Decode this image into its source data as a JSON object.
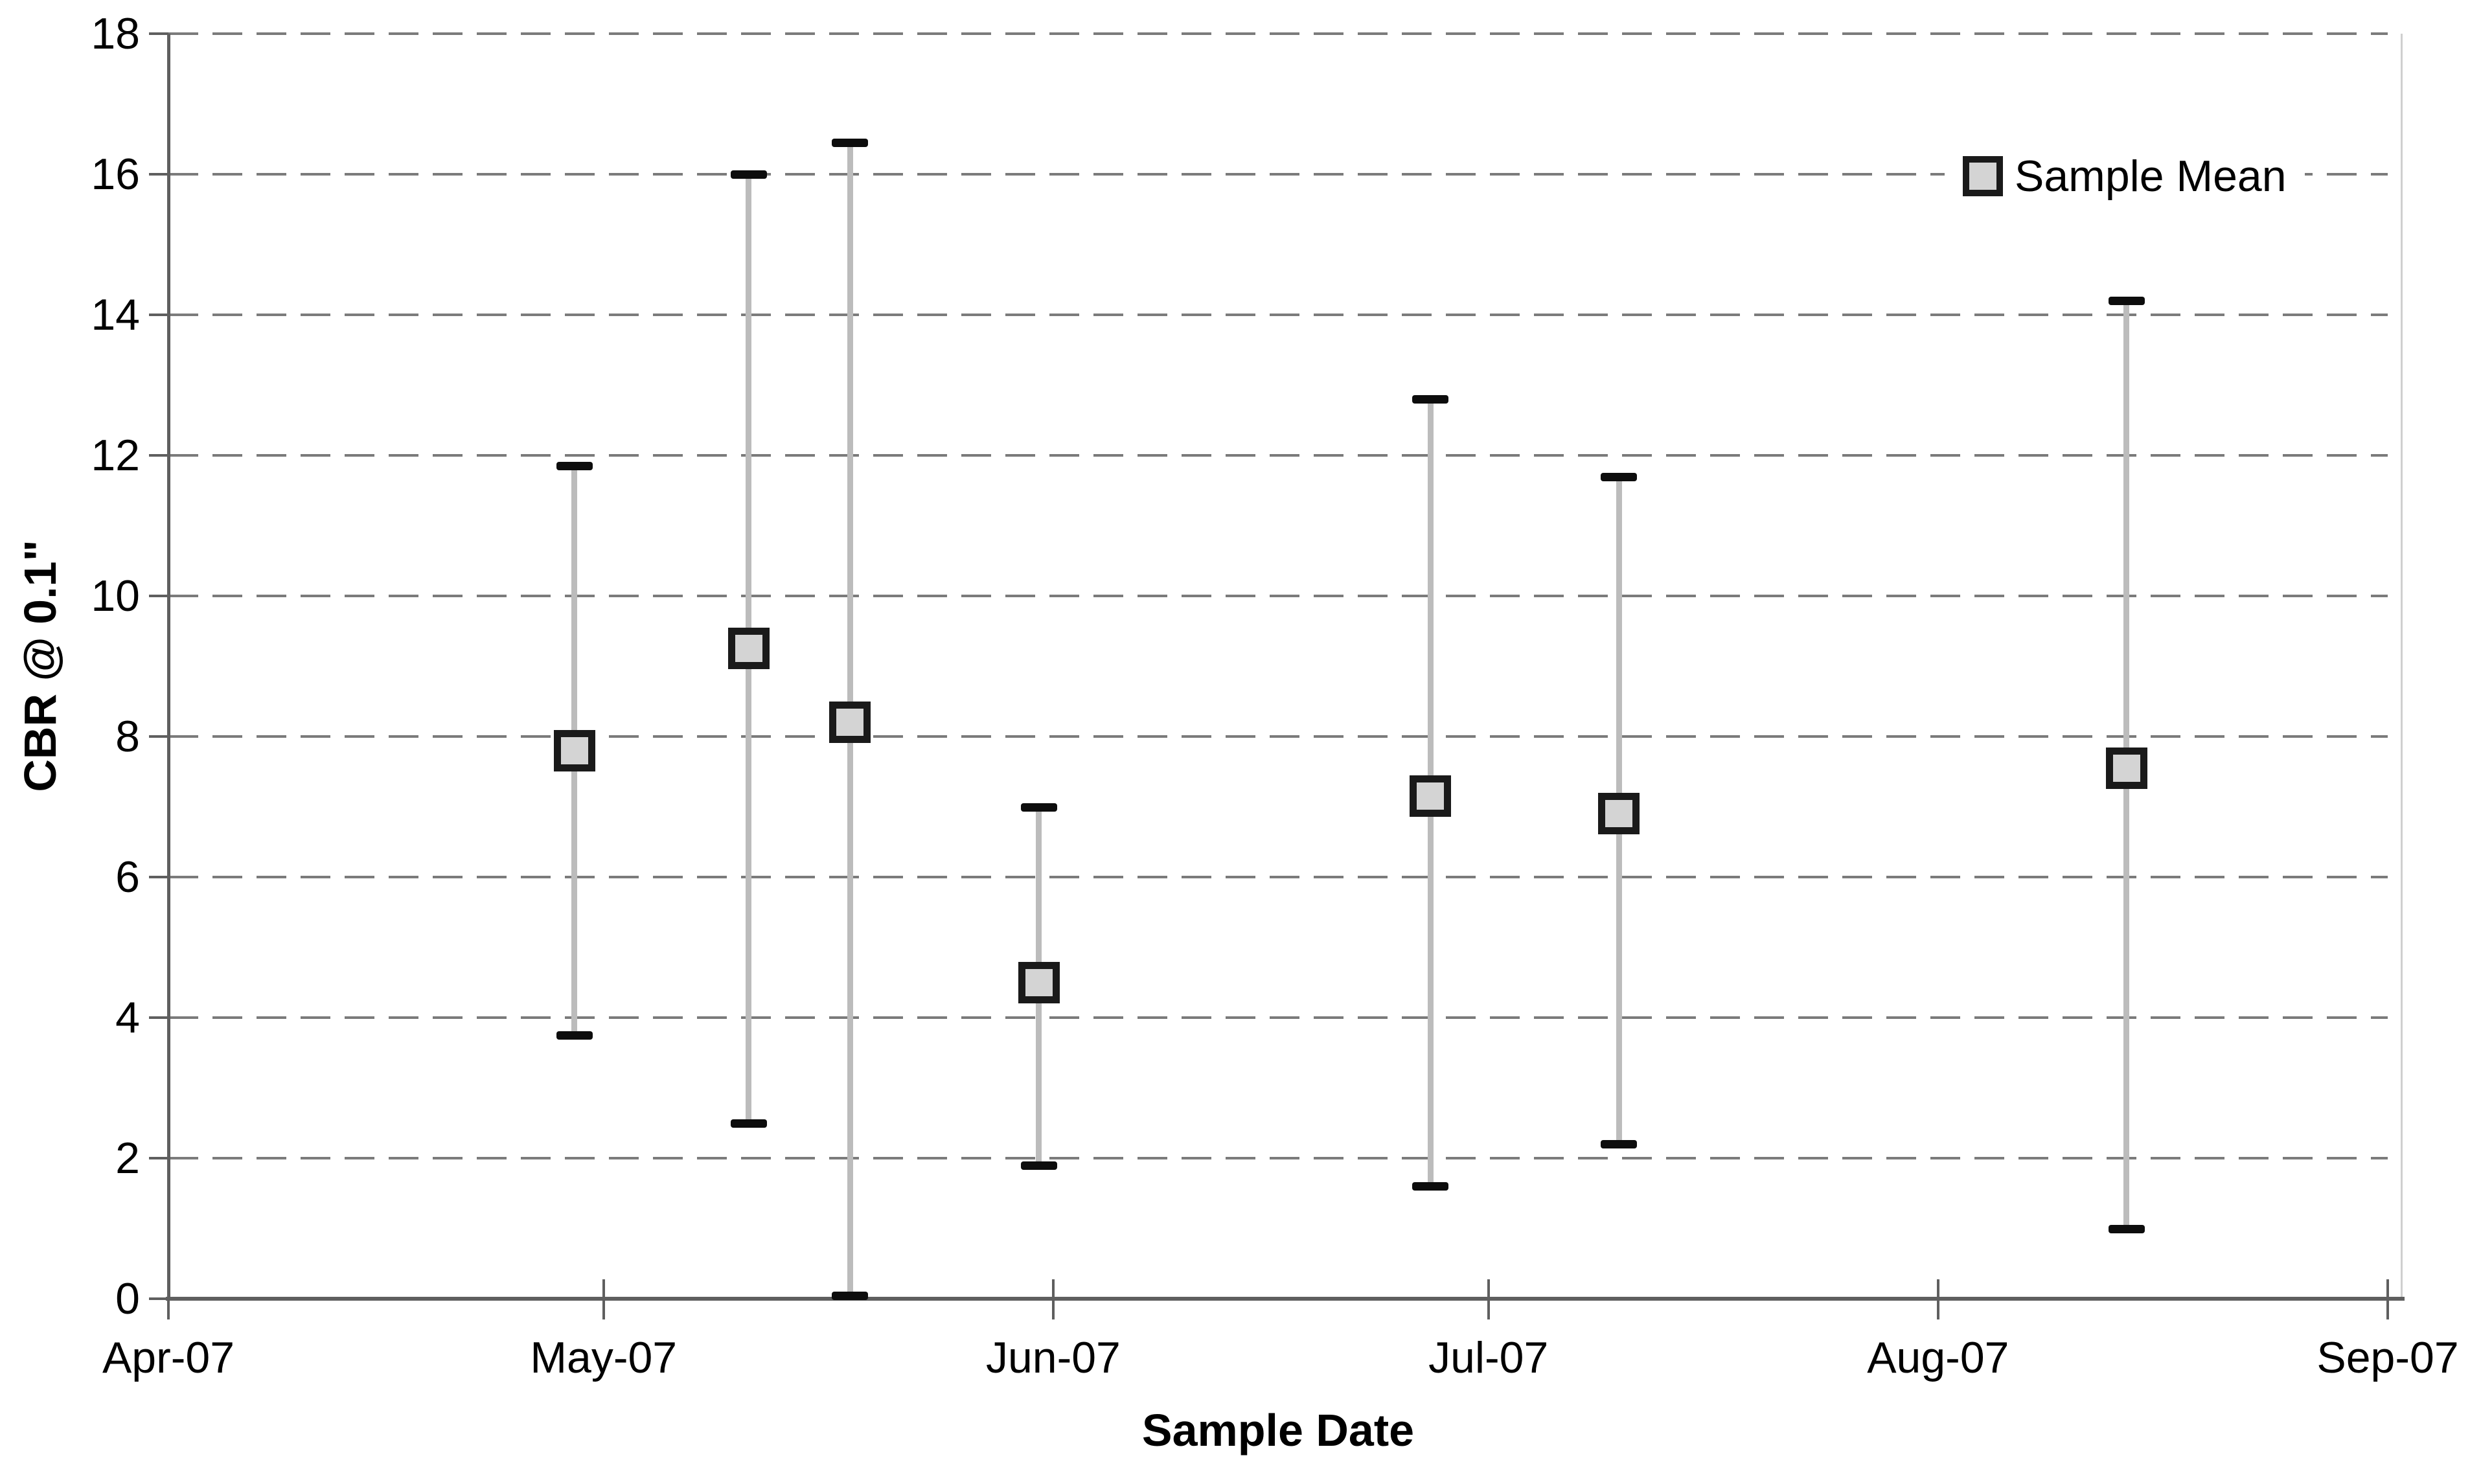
{
  "page": {
    "background": "#ffffff"
  },
  "legend": {
    "label": "Sample Mean"
  },
  "colors": {
    "gridline": "#7b7b7b",
    "axis": "#5f5f5f",
    "error_line": "#bcbcbc",
    "error_cap": "#0d0d0d",
    "marker_fill": "#d4d4d4",
    "marker_border": "#1a1a1a",
    "text": "#000000"
  },
  "chart_data": {
    "type": "scatter",
    "title": "",
    "xlabel": "Sample Date",
    "ylabel": "CBR @ 0.1\"",
    "grid": "horizontal-dashed",
    "legend_position": "top-right",
    "x_axis": {
      "start_date": "2007-04-01",
      "end_date": "2007-09-01",
      "tick_dates": [
        "2007-04-01",
        "2007-05-01",
        "2007-06-01",
        "2007-07-01",
        "2007-08-01",
        "2007-09-01"
      ],
      "tick_labels": [
        "Apr-07",
        "May-07",
        "Jun-07",
        "Jul-07",
        "Aug-07",
        "Sep-07"
      ]
    },
    "y_axis": {
      "min": 0,
      "max": 18,
      "step": 2,
      "tick_labels": [
        "0",
        "2",
        "4",
        "6",
        "8",
        "10",
        "12",
        "14",
        "16",
        "18"
      ]
    },
    "series": [
      {
        "name": "Sample Mean",
        "marker": {
          "shape": "square",
          "fill": "#d4d4d4",
          "border": "#1a1a1a"
        },
        "error_bars": "min-max range with caps",
        "points": [
          {
            "date": "2007-04-29",
            "mean": 7.8,
            "upper": 11.85,
            "lower": 3.75
          },
          {
            "date": "2007-05-11",
            "mean": 9.25,
            "upper": 16.0,
            "lower": 2.5
          },
          {
            "date": "2007-05-18",
            "mean": 8.2,
            "upper": 16.45,
            "lower": 0.05
          },
          {
            "date": "2007-05-31",
            "mean": 4.5,
            "upper": 7.0,
            "lower": 1.9
          },
          {
            "date": "2007-06-27",
            "mean": 7.15,
            "upper": 12.8,
            "lower": 1.6
          },
          {
            "date": "2007-07-10",
            "mean": 6.9,
            "upper": 11.7,
            "lower": 2.2
          },
          {
            "date": "2007-08-14",
            "mean": 7.55,
            "upper": 14.2,
            "lower": 1.0
          }
        ]
      }
    ]
  }
}
